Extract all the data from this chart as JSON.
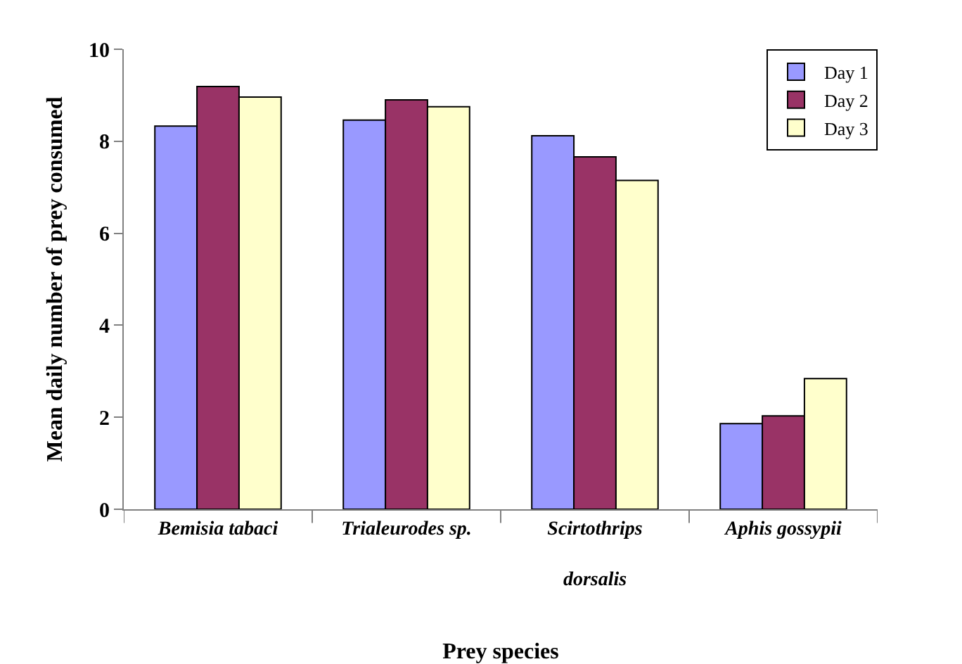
{
  "chart_data": {
    "type": "bar",
    "xlabel": "Prey species",
    "ylabel": "Mean daily number of prey consumed",
    "categories": [
      "Bemisia tabaci",
      "Trialeurodes sp.",
      "Scirtothrips dorsalis",
      "Aphis gossypii"
    ],
    "series": [
      {
        "name": "Day 1",
        "color": "#9999ff",
        "values": [
          8.33,
          8.46,
          8.12,
          1.86
        ]
      },
      {
        "name": "Day 2",
        "color": "#993366",
        "values": [
          9.19,
          8.9,
          7.66,
          2.03
        ]
      },
      {
        "name": "Day 3",
        "color": "#ffffcc",
        "values": [
          8.96,
          8.75,
          7.15,
          2.84
        ]
      }
    ],
    "ylim": [
      0,
      10
    ],
    "yticks": [
      0,
      2,
      4,
      6,
      8,
      10
    ],
    "grid": false,
    "legend": "top right"
  }
}
